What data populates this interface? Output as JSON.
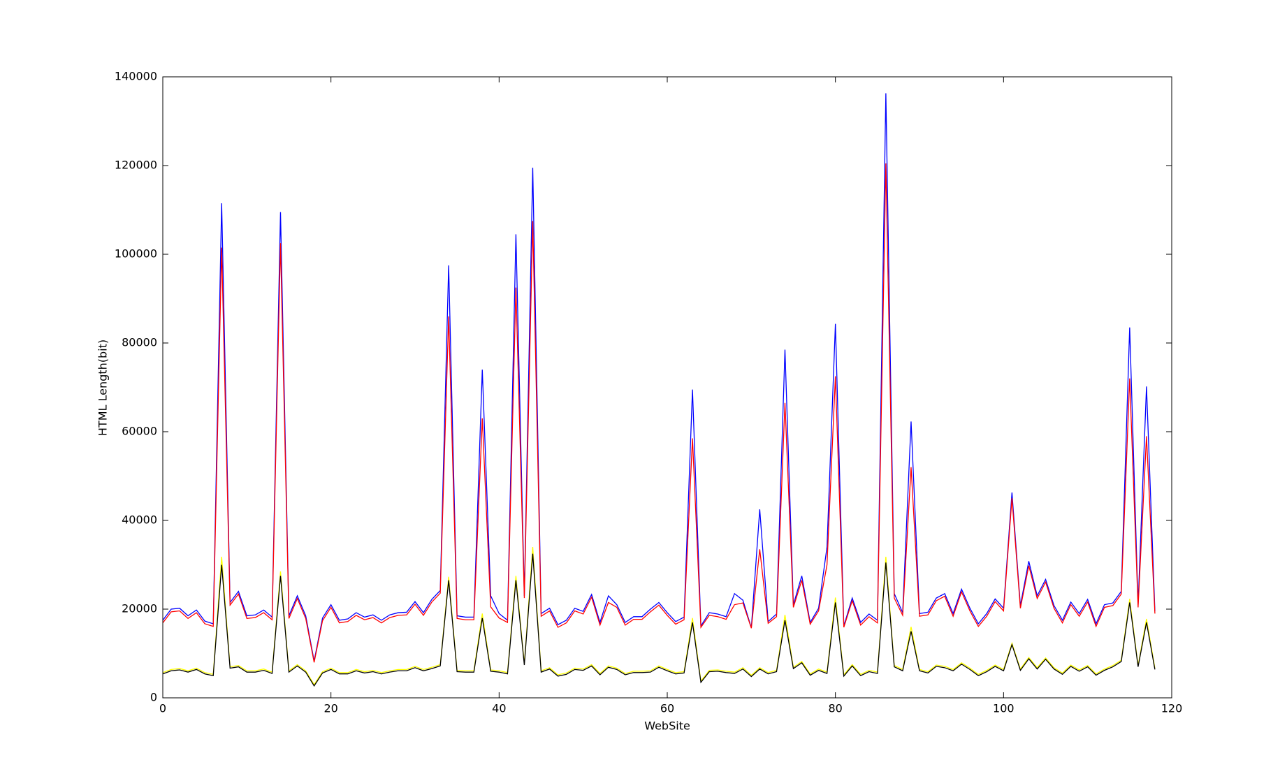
{
  "chart_data": {
    "type": "line",
    "xlabel": "WebSite",
    "ylabel": "HTML Length(bit)",
    "x": [
      0,
      1,
      2,
      3,
      4,
      5,
      6,
      7,
      8,
      9,
      10,
      11,
      12,
      13,
      14,
      15,
      16,
      17,
      18,
      19,
      20,
      21,
      22,
      23,
      24,
      25,
      26,
      27,
      28,
      29,
      30,
      31,
      32,
      33,
      34,
      35,
      36,
      37,
      38,
      39,
      40,
      41,
      42,
      43,
      44,
      45,
      46,
      47,
      48,
      49,
      50,
      51,
      52,
      53,
      54,
      55,
      56,
      57,
      58,
      59,
      60,
      61,
      62,
      63,
      64,
      65,
      66,
      67,
      68,
      69,
      70,
      71,
      72,
      73,
      74,
      75,
      76,
      77,
      78,
      79,
      80,
      81,
      82,
      83,
      84,
      85,
      86,
      87,
      88,
      89,
      90,
      91,
      92,
      93,
      94,
      95,
      96,
      97,
      98,
      99,
      100,
      101,
      102,
      103,
      104,
      105,
      106,
      107,
      108,
      109,
      110,
      111,
      112,
      113,
      114,
      115,
      116,
      117,
      118
    ],
    "series": [
      {
        "color": "#0000ff",
        "values": [
          17500,
          20000,
          20200,
          18500,
          19800,
          17300,
          16700,
          111500,
          21500,
          24000,
          18500,
          18700,
          19800,
          18200,
          109500,
          18500,
          23000,
          18500,
          8300,
          18000,
          21000,
          17500,
          17800,
          19200,
          18200,
          18700,
          17500,
          18700,
          19200,
          19300,
          21700,
          19200,
          22200,
          24200,
          97500,
          18500,
          18200,
          18200,
          74000,
          23000,
          19000,
          17500,
          104500,
          23000,
          119500,
          19000,
          20200,
          16500,
          17500,
          20200,
          19500,
          23300,
          17000,
          23000,
          21000,
          17000,
          18300,
          18300,
          20000,
          21500,
          19200,
          17200,
          18200,
          69500,
          16200,
          19200,
          18900,
          18300,
          23500,
          22000,
          15800,
          42500,
          17200,
          18900,
          78500,
          21000,
          27500,
          17000,
          20200,
          34000,
          84300,
          16200,
          22500,
          17000,
          18900,
          17500,
          136300,
          23500,
          19200,
          62300,
          19000,
          19300,
          22500,
          23500,
          19000,
          24500,
          20200,
          16700,
          19000,
          22300,
          20200,
          46300,
          20800,
          30800,
          23000,
          26700,
          20800,
          17500,
          21600,
          19000,
          22200,
          16700,
          21000,
          21400,
          24000,
          83500,
          21000,
          70200,
          19500
        ]
      },
      {
        "color": "#ff0000",
        "values": [
          16900,
          19400,
          19600,
          17900,
          19200,
          16700,
          16100,
          101500,
          20900,
          23400,
          17900,
          18100,
          19200,
          17600,
          102500,
          17900,
          22400,
          17900,
          8000,
          17400,
          20400,
          16900,
          17200,
          18600,
          17600,
          18100,
          16900,
          18100,
          18600,
          18700,
          21100,
          18600,
          21600,
          23600,
          86000,
          17900,
          17600,
          17600,
          63000,
          20500,
          18000,
          17000,
          92500,
          22500,
          107500,
          18400,
          19600,
          15900,
          16900,
          19600,
          18900,
          22700,
          16400,
          21500,
          20400,
          16400,
          17700,
          17700,
          19400,
          20900,
          18600,
          16600,
          17600,
          58500,
          15900,
          18600,
          18300,
          17700,
          21000,
          21400,
          15700,
          33500,
          16800,
          18300,
          66500,
          20400,
          26500,
          16600,
          19600,
          30000,
          72500,
          15900,
          21900,
          16400,
          18300,
          16900,
          120500,
          22500,
          18600,
          52000,
          18400,
          18700,
          21900,
          22900,
          18400,
          23900,
          19600,
          16100,
          18400,
          21700,
          19600,
          45000,
          20200,
          29800,
          22400,
          26100,
          20200,
          16900,
          21000,
          18400,
          21600,
          16100,
          20400,
          20800,
          23400,
          72000,
          20400,
          59000,
          19000
        ]
      },
      {
        "color": "#ffff00",
        "values": [
          5700,
          6400,
          6600,
          6100,
          6700,
          5700,
          5300,
          31800,
          7000,
          7300,
          6100,
          6100,
          6500,
          5800,
          28500,
          6100,
          7500,
          6100,
          3000,
          5900,
          6700,
          5700,
          5700,
          6400,
          5900,
          6200,
          5700,
          6100,
          6400,
          6400,
          7100,
          6400,
          6900,
          7500,
          27300,
          6200,
          6100,
          6100,
          19000,
          6300,
          6100,
          5700,
          27500,
          7700,
          34000,
          6100,
          6800,
          5200,
          5600,
          6700,
          6500,
          7500,
          5500,
          7200,
          6700,
          5500,
          6000,
          6000,
          6100,
          7200,
          6400,
          5700,
          5900,
          18000,
          3800,
          6200,
          6300,
          6000,
          5800,
          6800,
          5100,
          6800,
          5700,
          6200,
          18700,
          6900,
          8200,
          5400,
          6500,
          5800,
          22600,
          5200,
          7500,
          5300,
          6200,
          5800,
          31800,
          7300,
          6400,
          16000,
          6400,
          5900,
          7400,
          7100,
          6400,
          7900,
          6700,
          5300,
          6200,
          7400,
          6400,
          12300,
          6500,
          9100,
          6800,
          9000,
          6800,
          5600,
          7400,
          6300,
          7300,
          5400,
          6500,
          7300,
          8500,
          22300,
          7300,
          17800,
          6700
        ]
      },
      {
        "color": "#000000",
        "values": [
          5400,
          6100,
          6300,
          5800,
          6400,
          5400,
          5000,
          30000,
          6700,
          7000,
          5800,
          5800,
          6200,
          5500,
          27500,
          5800,
          7200,
          5800,
          2700,
          5600,
          6400,
          5400,
          5400,
          6100,
          5600,
          5900,
          5400,
          5800,
          6100,
          6100,
          6800,
          6100,
          6600,
          7200,
          26500,
          5900,
          5800,
          5800,
          18000,
          6000,
          5800,
          5400,
          26500,
          7400,
          32500,
          5800,
          6500,
          4900,
          5300,
          6400,
          6200,
          7200,
          5200,
          6900,
          6400,
          5200,
          5700,
          5700,
          5800,
          6900,
          6100,
          5400,
          5600,
          17000,
          3500,
          5900,
          6000,
          5700,
          5500,
          6500,
          4800,
          6500,
          5400,
          5900,
          17500,
          6600,
          7900,
          5100,
          6200,
          5500,
          21500,
          4900,
          7200,
          5000,
          5900,
          5500,
          30500,
          7000,
          6100,
          15000,
          6100,
          5600,
          7100,
          6800,
          6100,
          7600,
          6400,
          5000,
          5900,
          7100,
          6100,
          12000,
          6200,
          8800,
          6500,
          8700,
          6500,
          5300,
          7100,
          6000,
          7000,
          5100,
          6200,
          7000,
          8200,
          21500,
          7000,
          17000,
          6400
        ]
      }
    ],
    "xlim": [
      0,
      120
    ],
    "xticks": [
      0,
      20,
      40,
      60,
      80,
      100,
      120
    ],
    "ylim": [
      0,
      140000
    ],
    "yticks": [
      0,
      20000,
      40000,
      60000,
      80000,
      100000,
      120000,
      140000
    ],
    "grid": false
  }
}
